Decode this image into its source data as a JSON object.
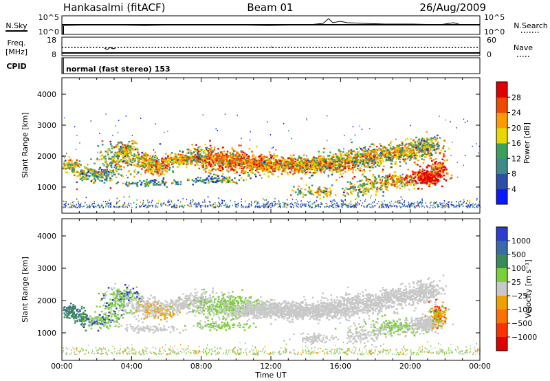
{
  "header": {
    "station": "Hankasalmi (fitACF)",
    "beam": "Beam 01",
    "date": "26/Aug/2009"
  },
  "strip_noise": {
    "left_label": "N.Sky",
    "right_label": "N.Search",
    "left_ticks": [
      "10^5",
      "10^0"
    ],
    "right_ticks": [
      "10^5",
      "10^0"
    ]
  },
  "strip_freq": {
    "left_label_1": "Freq.",
    "left_label_2": "[MHz]",
    "right_label": "Nave",
    "left_ticks": [
      "18",
      "8"
    ],
    "right_ticks": [
      "60",
      "0"
    ]
  },
  "strip_cpid": {
    "label": "CPID",
    "mode_text": "normal (fast stereo) 153"
  },
  "chart_data": [
    {
      "type": "heatmap",
      "name": "power",
      "ylabel": "Slant Range [km]",
      "y_ticks": [
        "1000",
        "2000",
        "3000",
        "4000"
      ],
      "colorbar_label": "Power [dB]",
      "colorbar_ticks": [
        "4",
        "8",
        "12",
        "16",
        "20",
        "24",
        "28"
      ],
      "colorbar_colors": [
        "#0a1aff",
        "#2b4ea8",
        "#3d8a8a",
        "#3aa05a",
        "#e6d800",
        "#ff9a00",
        "#f04a00",
        "#e00000"
      ]
    },
    {
      "type": "heatmap",
      "name": "velocity",
      "ylabel": "Slant Range [km]",
      "y_ticks": [
        "1000",
        "2000",
        "3000",
        "4000"
      ],
      "colorbar_label": "Velocity [m s⁻¹]",
      "colorbar_ticks": [
        "1000",
        "500",
        "100",
        "25",
        "−25",
        "−100",
        "−500",
        "−1000"
      ],
      "colorbar_colors": [
        "#2c3ccc",
        "#3a6aa8",
        "#3a8a5a",
        "#7ad03a",
        "#c8c8c8",
        "#f0a000",
        "#ff7000",
        "#ff3000",
        "#e00000"
      ]
    }
  ],
  "x_axis": {
    "label": "Time UT",
    "ticks": [
      "00:00",
      "04:00",
      "08:00",
      "12:00",
      "16:00",
      "20:00",
      "00:00"
    ]
  }
}
